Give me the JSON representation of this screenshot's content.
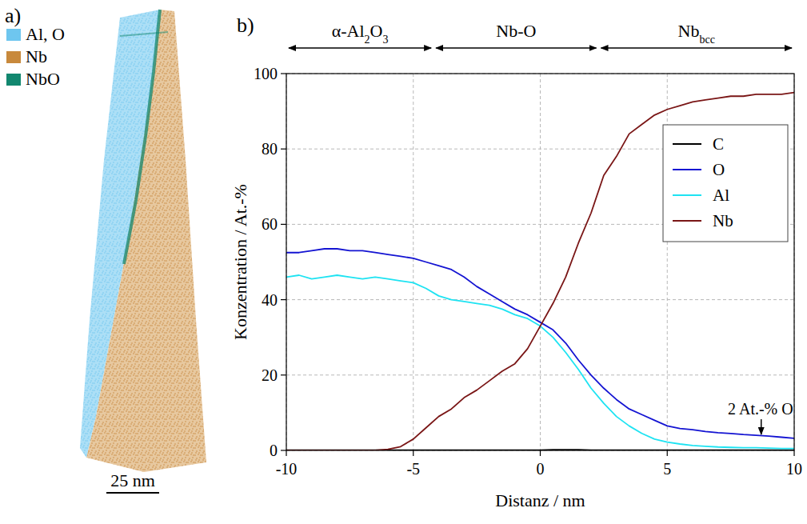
{
  "panel_labels": [
    "a)",
    "b)"
  ],
  "panel_a": {
    "legend": [
      {
        "name": "Al, O",
        "color": "#6ec6ef"
      },
      {
        "name": "Nb",
        "color": "#c8893c"
      },
      {
        "name": "NbO",
        "color": "#12876f"
      }
    ],
    "scale_bar": "25 nm"
  },
  "chart_data": {
    "type": "line",
    "x_label": "Distanz / nm",
    "y_label": "Konzentration / At.-%",
    "xlim": [
      -10,
      10
    ],
    "xticks": [
      -10,
      -5,
      0,
      5,
      10
    ],
    "ylim": [
      0,
      100
    ],
    "yticks": [
      0,
      20,
      40,
      60,
      80,
      100
    ],
    "grid": true,
    "legend": "upper right",
    "regions": [
      {
        "label": [
          {
            "text": "α-Al"
          },
          {
            "text": "2",
            "sub": true
          },
          {
            "text": "O"
          },
          {
            "text": "3",
            "sub": true
          }
        ],
        "from": -10,
        "to": -4.2
      },
      {
        "label": [
          {
            "text": "Nb-O"
          }
        ],
        "from": -4.2,
        "to": 2.3
      },
      {
        "label": [
          {
            "text": "Nb"
          },
          {
            "text": "bcc",
            "sub": true
          }
        ],
        "from": 2.3,
        "to": 10
      }
    ],
    "annotations": [
      {
        "text": "2 At.-% O",
        "x": 8.7,
        "y": 3.6
      }
    ],
    "x": [
      -10,
      -9.5,
      -9,
      -8.5,
      -8,
      -7.5,
      -7,
      -6.5,
      -6,
      -5.5,
      -5,
      -4.5,
      -4,
      -3.5,
      -3,
      -2.5,
      -2,
      -1.5,
      -1,
      -0.5,
      0,
      0.5,
      1,
      1.5,
      2,
      2.5,
      3,
      3.5,
      4,
      4.5,
      5,
      5.5,
      6,
      6.5,
      7,
      7.5,
      8,
      8.5,
      9,
      9.5,
      10
    ],
    "series": [
      {
        "name": "C",
        "color": "#000000",
        "values": [
          0.1,
          0.1,
          0.1,
          0.1,
          0.1,
          0.1,
          0.1,
          0.1,
          0.1,
          0.1,
          0.1,
          0.1,
          0.1,
          0.1,
          0.1,
          0.1,
          0.1,
          0.1,
          0.1,
          0.1,
          0.1,
          0.2,
          0.2,
          0.2,
          0.1,
          0.1,
          0.1,
          0.1,
          0.1,
          0.1,
          0.1,
          0.1,
          0.1,
          0.1,
          0.1,
          0.1,
          0.1,
          0.1,
          0.1,
          0.1,
          0.1
        ]
      },
      {
        "name": "O",
        "color": "#1414d2",
        "values": [
          52.5,
          52.5,
          53,
          53.5,
          53.5,
          53,
          53,
          52.5,
          52,
          51.5,
          51,
          50,
          49,
          48,
          46,
          43.5,
          41.5,
          39.5,
          37.5,
          36,
          34,
          32,
          28.5,
          24,
          20,
          16.5,
          13.5,
          11,
          9.5,
          8,
          6.5,
          5.8,
          5.5,
          5,
          4.7,
          4.5,
          4.2,
          4,
          3.8,
          3.5,
          3.2
        ]
      },
      {
        "name": "Al",
        "color": "#1ee3f2",
        "values": [
          46,
          46.5,
          45.5,
          46,
          46.5,
          46,
          45.5,
          46,
          45.5,
          45,
          44.5,
          43,
          41,
          40,
          39.5,
          39,
          38.5,
          37.5,
          36,
          35,
          33,
          30,
          26,
          21.5,
          16.5,
          12.5,
          9,
          6.5,
          4.5,
          3,
          2.2,
          1.7,
          1.3,
          1.1,
          0.9,
          0.8,
          0.7,
          0.7,
          0.6,
          0.5,
          0.5
        ]
      },
      {
        "name": "Nb",
        "color": "#7a1616",
        "values": [
          0,
          0,
          0,
          0,
          0,
          0,
          0,
          0,
          0.3,
          1,
          3,
          6,
          9,
          11,
          14,
          16,
          18.5,
          21,
          23,
          27,
          33,
          39,
          46,
          55,
          63,
          73,
          78,
          84,
          86.5,
          89,
          90.5,
          91.5,
          92.5,
          93,
          93.5,
          94,
          94,
          94.5,
          94.5,
          94.5,
          95
        ]
      }
    ]
  }
}
